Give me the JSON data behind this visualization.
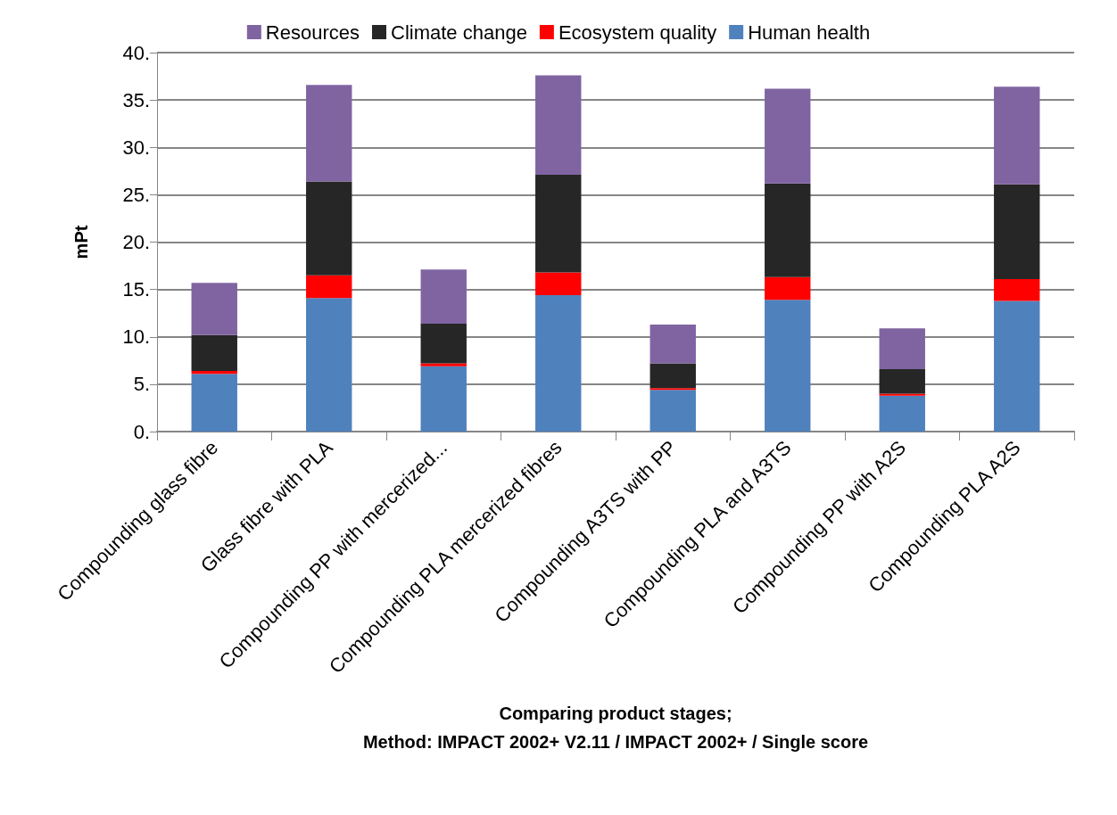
{
  "chart_data": {
    "type": "bar",
    "stacked": true,
    "xlabel": "Comparing product stages;\nMethod: IMPACT 2002+ V2.11 / IMPACT 2002+ / Single score",
    "ylabel": "mPt",
    "categories": [
      "Compounding glass fibre",
      "Glass fibre with PLA",
      "Compounding PP with mercerized...",
      "Compounding PLA mercerized fibres",
      "Compounding A3TS with PP",
      "Compounding PLA and A3TS",
      "Compounding PP with A2S",
      "Compounding PLA A2S"
    ],
    "series": [
      {
        "name": "Human health",
        "color": "#4f81bd",
        "values": [
          6.1,
          14.1,
          6.9,
          14.4,
          4.4,
          13.9,
          3.8,
          13.8
        ]
      },
      {
        "name": "Ecosystem quality",
        "color": "#ff0000",
        "values": [
          0.3,
          2.4,
          0.3,
          2.4,
          0.2,
          2.4,
          0.2,
          2.3
        ]
      },
      {
        "name": "Climate change",
        "color": "#262626",
        "values": [
          3.8,
          9.9,
          4.2,
          10.3,
          2.6,
          9.9,
          2.6,
          10.0
        ]
      },
      {
        "name": "Resources",
        "color": "#8064a2",
        "values": [
          5.5,
          10.2,
          5.7,
          10.5,
          4.1,
          10.0,
          4.3,
          10.3
        ]
      }
    ],
    "ylim": [
      0,
      40
    ],
    "yticks": [
      {
        "value": 0,
        "label": "0."
      },
      {
        "value": 5,
        "label": "5."
      },
      {
        "value": 10,
        "label": "10."
      },
      {
        "value": 15,
        "label": "15."
      },
      {
        "value": 20,
        "label": "20."
      },
      {
        "value": 25,
        "label": "25."
      },
      {
        "value": 30,
        "label": "30."
      },
      {
        "value": 35,
        "label": "35."
      },
      {
        "value": 40,
        "label": "40."
      }
    ],
    "grid": "y",
    "legend": "top"
  }
}
